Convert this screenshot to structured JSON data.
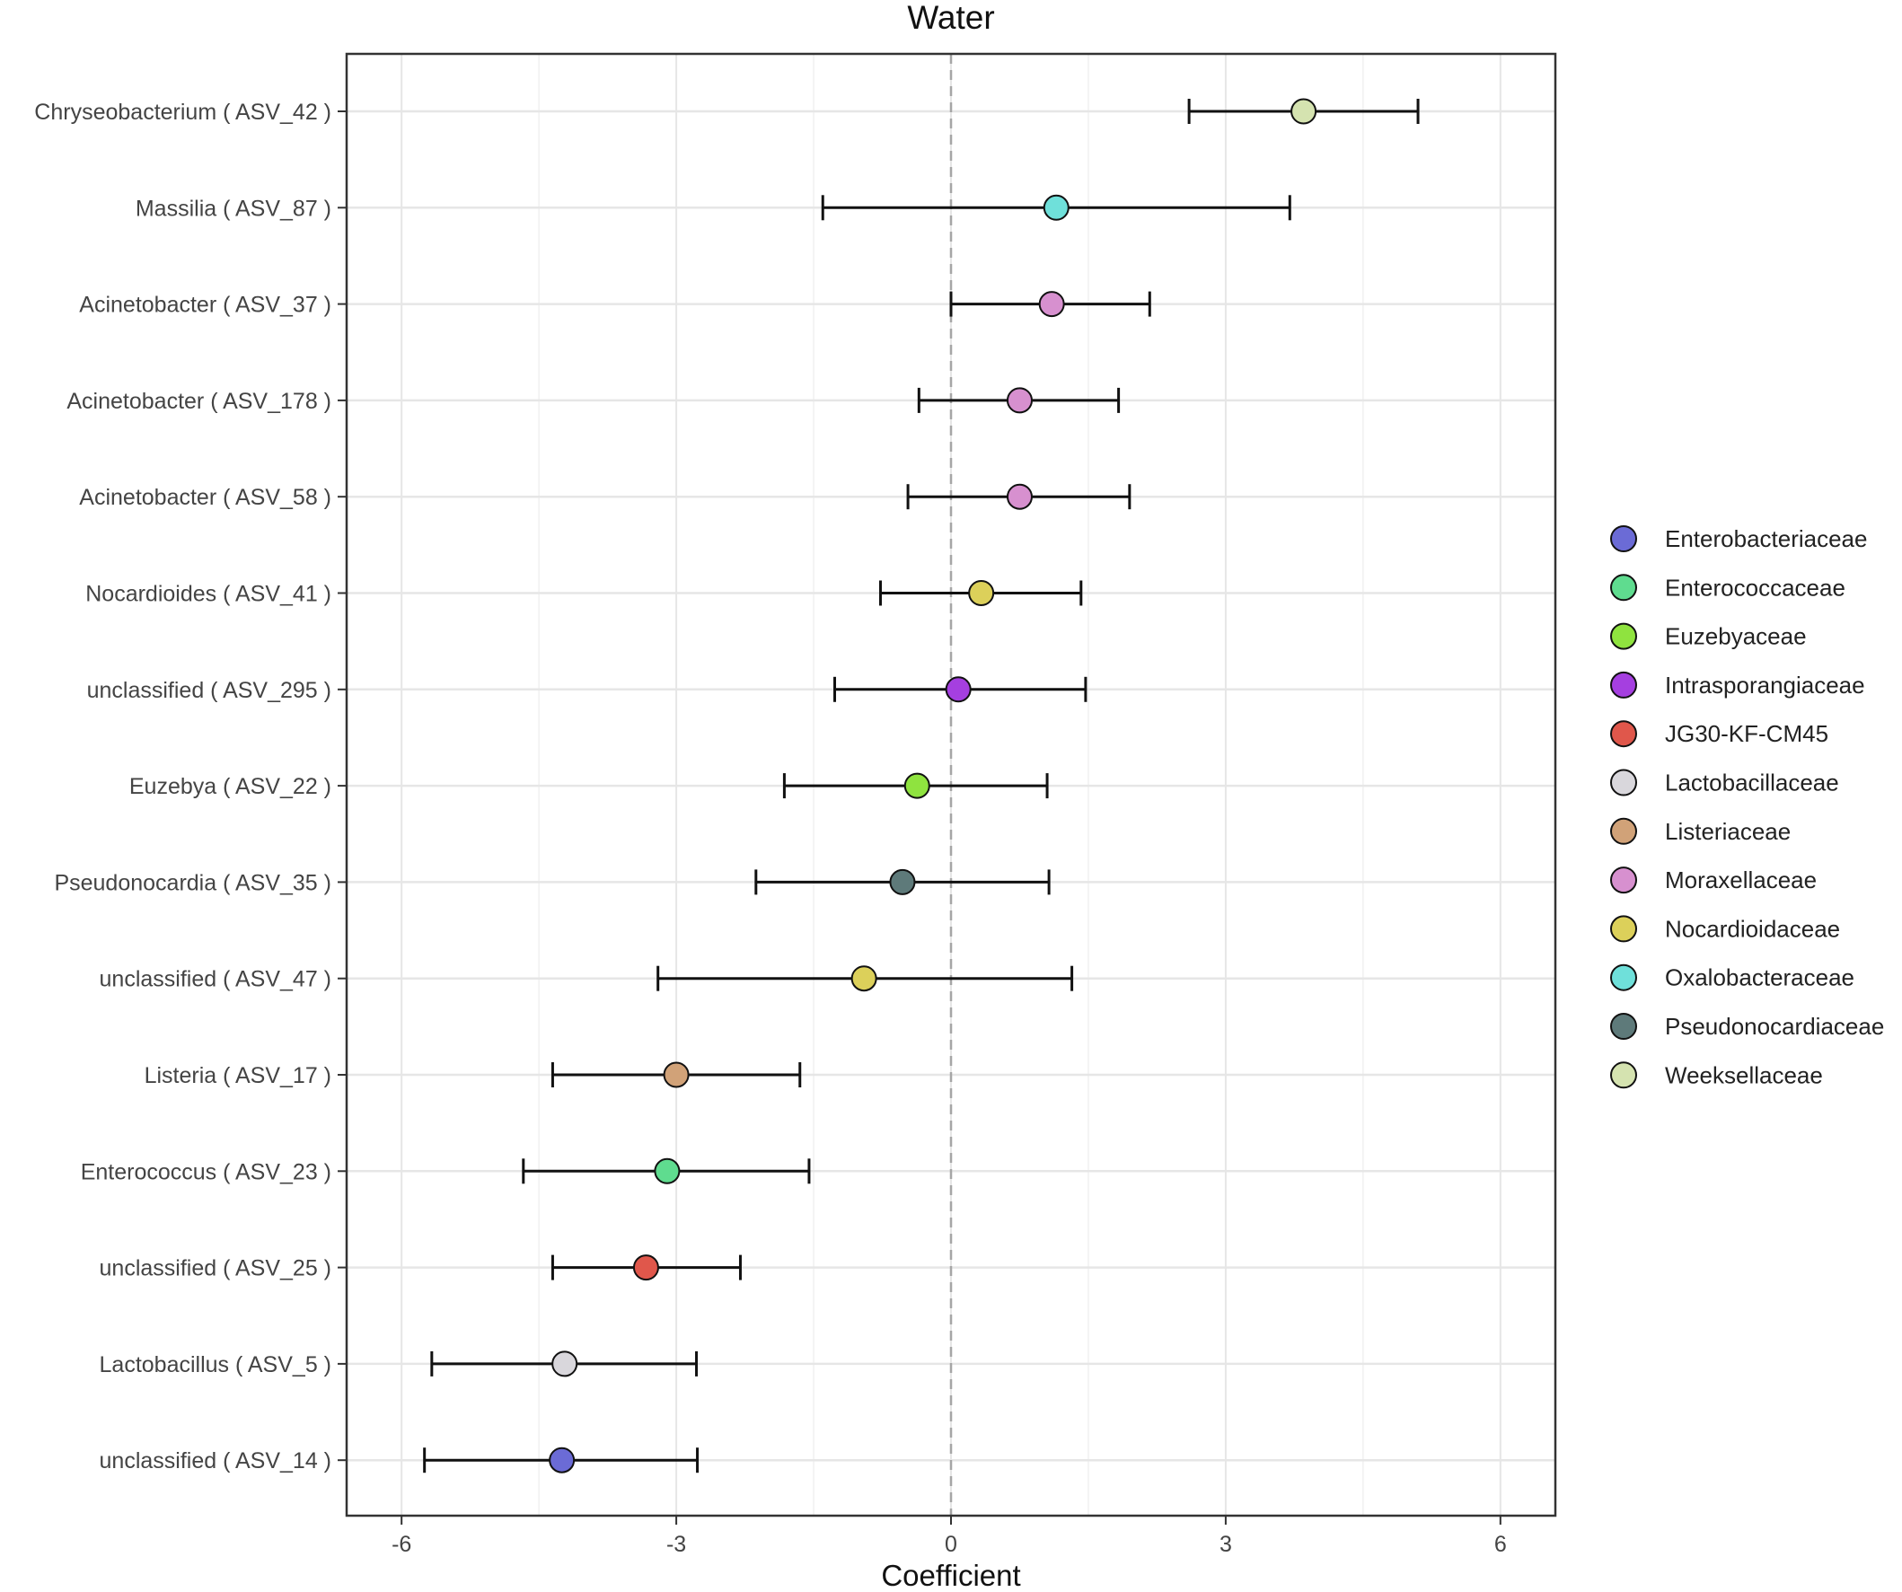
{
  "chart_data": {
    "type": "scatter",
    "title": "Water",
    "xlabel": "Coefficient",
    "ylabel": "",
    "xlim": [
      -6.6,
      6.6
    ],
    "xticks": [
      -6,
      -3,
      0,
      3,
      6
    ],
    "xtick_labels": [
      "-6",
      "-3",
      "0",
      "3",
      "6"
    ],
    "reference_line": {
      "x": 0,
      "style": "dashed"
    },
    "grid": true,
    "legend_position": "right",
    "items": [
      {
        "label": "Chryseobacterium ( ASV_42 )",
        "value": 3.85,
        "lower": 2.6,
        "upper": 5.1,
        "family": "Weeksellaceae"
      },
      {
        "label": "Massilia ( ASV_87 )",
        "value": 1.15,
        "lower": -1.4,
        "upper": 3.7,
        "family": "Oxalobacteraceae"
      },
      {
        "label": "Acinetobacter ( ASV_37 )",
        "value": 1.1,
        "lower": 0.0,
        "upper": 2.17,
        "family": "Moraxellaceae"
      },
      {
        "label": "Acinetobacter ( ASV_178 )",
        "value": 0.75,
        "lower": -0.35,
        "upper": 1.83,
        "family": "Moraxellaceae"
      },
      {
        "label": "Acinetobacter ( ASV_58 )",
        "value": 0.75,
        "lower": -0.47,
        "upper": 1.95,
        "family": "Moraxellaceae"
      },
      {
        "label": "Nocardioides ( ASV_41 )",
        "value": 0.33,
        "lower": -0.77,
        "upper": 1.42,
        "family": "Nocardioidaceae"
      },
      {
        "label": "unclassified ( ASV_295 )",
        "value": 0.08,
        "lower": -1.27,
        "upper": 1.47,
        "family": "Intrasporangiaceae"
      },
      {
        "label": "Euzebya ( ASV_22 )",
        "value": -0.37,
        "lower": -1.82,
        "upper": 1.05,
        "family": "Euzebyaceae"
      },
      {
        "label": "Pseudonocardia ( ASV_35 )",
        "value": -0.53,
        "lower": -2.13,
        "upper": 1.07,
        "family": "Pseudonocardiaceae"
      },
      {
        "label": "unclassified ( ASV_47 )",
        "value": -0.95,
        "lower": -3.2,
        "upper": 1.32,
        "family": "Nocardioidaceae"
      },
      {
        "label": "Listeria ( ASV_17 )",
        "value": -3.0,
        "lower": -4.35,
        "upper": -1.65,
        "family": "Listeriaceae"
      },
      {
        "label": "Enterococcus ( ASV_23 )",
        "value": -3.1,
        "lower": -4.67,
        "upper": -1.55,
        "family": "Enterococcaceae"
      },
      {
        "label": "unclassified ( ASV_25 )",
        "value": -3.33,
        "lower": -4.35,
        "upper": -2.3,
        "family": "JG30-KF-CM45"
      },
      {
        "label": "Lactobacillus ( ASV_5 )",
        "value": -4.22,
        "lower": -5.67,
        "upper": -2.78,
        "family": "Lactobacillaceae"
      },
      {
        "label": "unclassified ( ASV_14 )",
        "value": -4.25,
        "lower": -5.75,
        "upper": -2.77,
        "family": "Enterobacteriaceae"
      }
    ],
    "legend": [
      {
        "name": "Enterobacteriaceae",
        "color": "#6b6bd6"
      },
      {
        "name": "Enterococcaceae",
        "color": "#5fdc8f"
      },
      {
        "name": "Euzebyaceae",
        "color": "#8fe33f"
      },
      {
        "name": "Intrasporangiaceae",
        "color": "#a53fe0"
      },
      {
        "name": "JG30-KF-CM45",
        "color": "#e0574b"
      },
      {
        "name": "Lactobacillaceae",
        "color": "#d9d7dc"
      },
      {
        "name": "Listeriaceae",
        "color": "#d1a278"
      },
      {
        "name": "Moraxellaceae",
        "color": "#d790cf"
      },
      {
        "name": "Nocardioidaceae",
        "color": "#dcd05a"
      },
      {
        "name": "Oxalobacteraceae",
        "color": "#6fe0da"
      },
      {
        "name": "Pseudonocardiaceae",
        "color": "#5e7a7a"
      },
      {
        "name": "Weeksellaceae",
        "color": "#d5e3b0"
      }
    ]
  }
}
